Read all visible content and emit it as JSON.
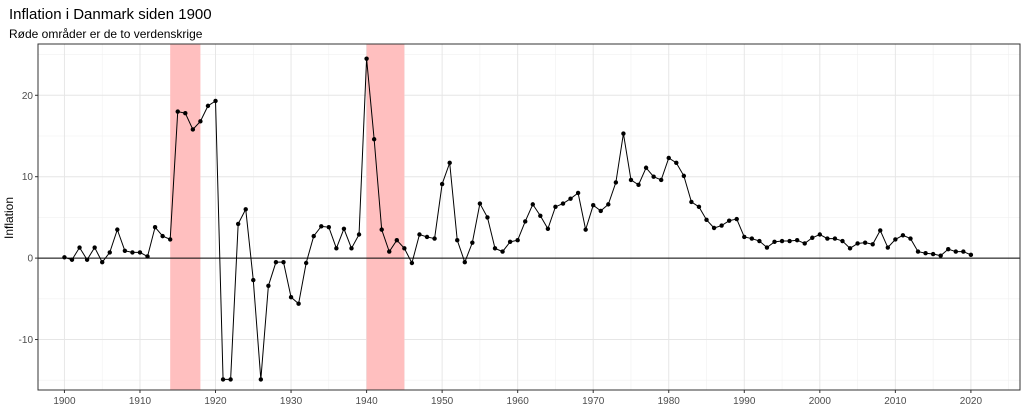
{
  "chart_data": {
    "type": "line",
    "title": "Inflation i Danmark siden 1900",
    "subtitle": "Røde områder er de to verdenskrige",
    "xlabel": "",
    "ylabel": "Inflation",
    "xlim": [
      1896.5,
      2026.5
    ],
    "ylim": [
      -16.2,
      26.3
    ],
    "x_ticks": [
      1900,
      1910,
      1920,
      1930,
      1940,
      1950,
      1960,
      1970,
      1980,
      1990,
      2000,
      2010,
      2020
    ],
    "y_ticks": [
      -10,
      0,
      10,
      20
    ],
    "grid": true,
    "legend": "none",
    "hline": 0,
    "highlight_color": "#ffbfbf",
    "shaded_periods": [
      {
        "start": 1914,
        "end": 1918
      },
      {
        "start": 1940,
        "end": 1945
      }
    ],
    "series": [
      {
        "x": [
          1900,
          1901,
          1902,
          1903,
          1904,
          1905,
          1906,
          1907,
          1908,
          1909,
          1910,
          1911,
          1912,
          1913,
          1914,
          1915,
          1916,
          1917,
          1918,
          1919,
          1920,
          1921,
          1922,
          1923,
          1924,
          1925,
          1926,
          1927,
          1928,
          1929,
          1930,
          1931,
          1932,
          1933,
          1934,
          1935,
          1936,
          1937,
          1938,
          1939,
          1940,
          1941,
          1942,
          1943,
          1944,
          1945,
          1946,
          1947,
          1948,
          1949,
          1950,
          1951,
          1952,
          1953,
          1954,
          1955,
          1956,
          1957,
          1958,
          1959,
          1960,
          1961,
          1962,
          1963,
          1964,
          1965,
          1966,
          1967,
          1968,
          1969,
          1970,
          1971,
          1972,
          1973,
          1974,
          1975,
          1976,
          1977,
          1978,
          1979,
          1980,
          1981,
          1982,
          1983,
          1984,
          1985,
          1986,
          1987,
          1988,
          1989,
          1990,
          1991,
          1992,
          1993,
          1994,
          1995,
          1996,
          1997,
          1998,
          1999,
          2000,
          2001,
          2002,
          2003,
          2004,
          2005,
          2006,
          2007,
          2008,
          2009,
          2010,
          2011,
          2012,
          2013,
          2014,
          2015,
          2016,
          2017,
          2018,
          2019,
          2020
        ],
        "y": [
          0.1,
          -0.2,
          1.3,
          -0.2,
          1.3,
          -0.5,
          0.7,
          3.5,
          0.9,
          0.7,
          0.7,
          0.2,
          3.8,
          2.7,
          2.3,
          18.0,
          17.8,
          15.8,
          16.8,
          18.7,
          19.3,
          -14.9,
          -14.9,
          4.2,
          6.0,
          -2.7,
          -14.9,
          -3.4,
          -0.5,
          -0.5,
          -4.8,
          -5.6,
          -0.6,
          2.7,
          3.9,
          3.8,
          1.2,
          3.6,
          1.2,
          2.9,
          24.5,
          14.6,
          3.5,
          0.8,
          2.2,
          1.2,
          -0.6,
          2.9,
          2.6,
          2.4,
          9.1,
          11.7,
          2.2,
          -0.5,
          1.9,
          6.7,
          5.0,
          1.2,
          0.8,
          2.0,
          2.2,
          4.5,
          6.6,
          5.2,
          3.6,
          6.3,
          6.7,
          7.3,
          8.0,
          3.5,
          6.5,
          5.8,
          6.6,
          9.3,
          15.3,
          9.6,
          9.0,
          11.1,
          10.0,
          9.6,
          12.3,
          11.7,
          10.1,
          6.9,
          6.3,
          4.7,
          3.7,
          4.0,
          4.6,
          4.8,
          2.6,
          2.4,
          2.1,
          1.3,
          2.0,
          2.1,
          2.1,
          2.2,
          1.8,
          2.5,
          2.9,
          2.4,
          2.4,
          2.1,
          1.2,
          1.8,
          1.9,
          1.7,
          3.4,
          1.3,
          2.3,
          2.8,
          2.4,
          0.8,
          0.6,
          0.5,
          0.3,
          1.1,
          0.8,
          0.8,
          0.4
        ]
      }
    ]
  }
}
